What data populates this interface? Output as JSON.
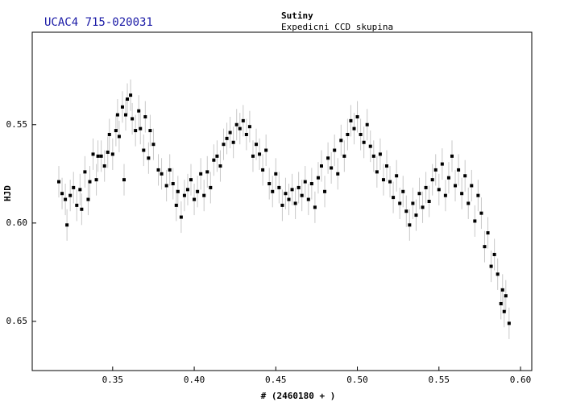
{
  "chart_data": {
    "type": "scatter",
    "title": "UCAC4 715-020031",
    "subtitle": "Sutiny",
    "subtitle2": "Expedicni CCD skupina",
    "xlabel": "# (2460180 + )",
    "ylabel": "HJD",
    "xlim": [
      0.3007,
      0.6069
    ],
    "ylim": [
      0.503,
      0.675
    ],
    "y_inverted": true,
    "xticks": [
      0.35,
      {
        "value": 0.4,
        "label": "0.40"
      },
      0.45,
      {
        "value": 0.5,
        "label": "0.50"
      },
      0.55,
      {
        "value": 0.6,
        "label": "0.60"
      }
    ],
    "yticks": [
      0.55,
      {
        "value": 0.6,
        "label": "0.60"
      },
      0.65
    ],
    "color": "#000000",
    "error_color": "#c8c8c8",
    "yerr": 0.008,
    "x": [
      0.317,
      0.319,
      0.321,
      0.322,
      0.324,
      0.326,
      0.328,
      0.33,
      0.331,
      0.333,
      0.335,
      0.336,
      0.338,
      0.34,
      0.341,
      0.343,
      0.345,
      0.347,
      0.348,
      0.35,
      0.352,
      0.353,
      0.354,
      0.356,
      0.357,
      0.358,
      0.359,
      0.361,
      0.362,
      0.364,
      0.366,
      0.367,
      0.369,
      0.37,
      0.372,
      0.373,
      0.375,
      0.378,
      0.38,
      0.383,
      0.385,
      0.387,
      0.389,
      0.39,
      0.392,
      0.394,
      0.396,
      0.398,
      0.4,
      0.402,
      0.404,
      0.406,
      0.408,
      0.41,
      0.412,
      0.414,
      0.416,
      0.418,
      0.42,
      0.422,
      0.424,
      0.426,
      0.428,
      0.43,
      0.432,
      0.434,
      0.436,
      0.438,
      0.44,
      0.442,
      0.444,
      0.446,
      0.448,
      0.45,
      0.452,
      0.454,
      0.456,
      0.458,
      0.46,
      0.462,
      0.464,
      0.466,
      0.468,
      0.47,
      0.472,
      0.474,
      0.476,
      0.478,
      0.48,
      0.482,
      0.484,
      0.486,
      0.488,
      0.49,
      0.492,
      0.494,
      0.496,
      0.498,
      0.5,
      0.502,
      0.504,
      0.506,
      0.508,
      0.51,
      0.512,
      0.514,
      0.516,
      0.518,
      0.52,
      0.522,
      0.524,
      0.526,
      0.528,
      0.53,
      0.532,
      0.534,
      0.536,
      0.538,
      0.54,
      0.542,
      0.544,
      0.546,
      0.548,
      0.55,
      0.552,
      0.554,
      0.556,
      0.558,
      0.56,
      0.562,
      0.564,
      0.566,
      0.568,
      0.57,
      0.572,
      0.574,
      0.576,
      0.578,
      0.58,
      0.582,
      0.584,
      0.586,
      0.588,
      0.589,
      0.59,
      0.591,
      0.593
    ],
    "y": [
      0.579,
      0.585,
      0.588,
      0.601,
      0.586,
      0.582,
      0.591,
      0.583,
      0.593,
      0.574,
      0.588,
      0.579,
      0.565,
      0.578,
      0.566,
      0.566,
      0.571,
      0.564,
      0.555,
      0.565,
      0.553,
      0.545,
      0.556,
      0.541,
      0.578,
      0.545,
      0.537,
      0.535,
      0.547,
      0.553,
      0.543,
      0.552,
      0.563,
      0.546,
      0.567,
      0.553,
      0.56,
      0.573,
      0.575,
      0.581,
      0.573,
      0.58,
      0.591,
      0.584,
      0.597,
      0.586,
      0.583,
      0.578,
      0.588,
      0.584,
      0.575,
      0.586,
      0.574,
      0.582,
      0.568,
      0.566,
      0.571,
      0.56,
      0.557,
      0.554,
      0.559,
      0.55,
      0.552,
      0.548,
      0.555,
      0.551,
      0.566,
      0.56,
      0.565,
      0.573,
      0.563,
      0.58,
      0.584,
      0.575,
      0.582,
      0.591,
      0.585,
      0.588,
      0.583,
      0.59,
      0.582,
      0.586,
      0.579,
      0.588,
      0.58,
      0.592,
      0.577,
      0.571,
      0.584,
      0.567,
      0.572,
      0.563,
      0.575,
      0.558,
      0.566,
      0.555,
      0.548,
      0.552,
      0.546,
      0.555,
      0.559,
      0.55,
      0.561,
      0.566,
      0.574,
      0.565,
      0.578,
      0.571,
      0.579,
      0.587,
      0.576,
      0.59,
      0.584,
      0.594,
      0.601,
      0.59,
      0.596,
      0.585,
      0.592,
      0.582,
      0.589,
      0.578,
      0.573,
      0.583,
      0.57,
      0.586,
      0.577,
      0.566,
      0.581,
      0.573,
      0.585,
      0.576,
      0.59,
      0.581,
      0.599,
      0.586,
      0.595,
      0.612,
      0.605,
      0.622,
      0.616,
      0.626,
      0.641,
      0.634,
      0.645,
      0.637,
      0.651
    ]
  }
}
